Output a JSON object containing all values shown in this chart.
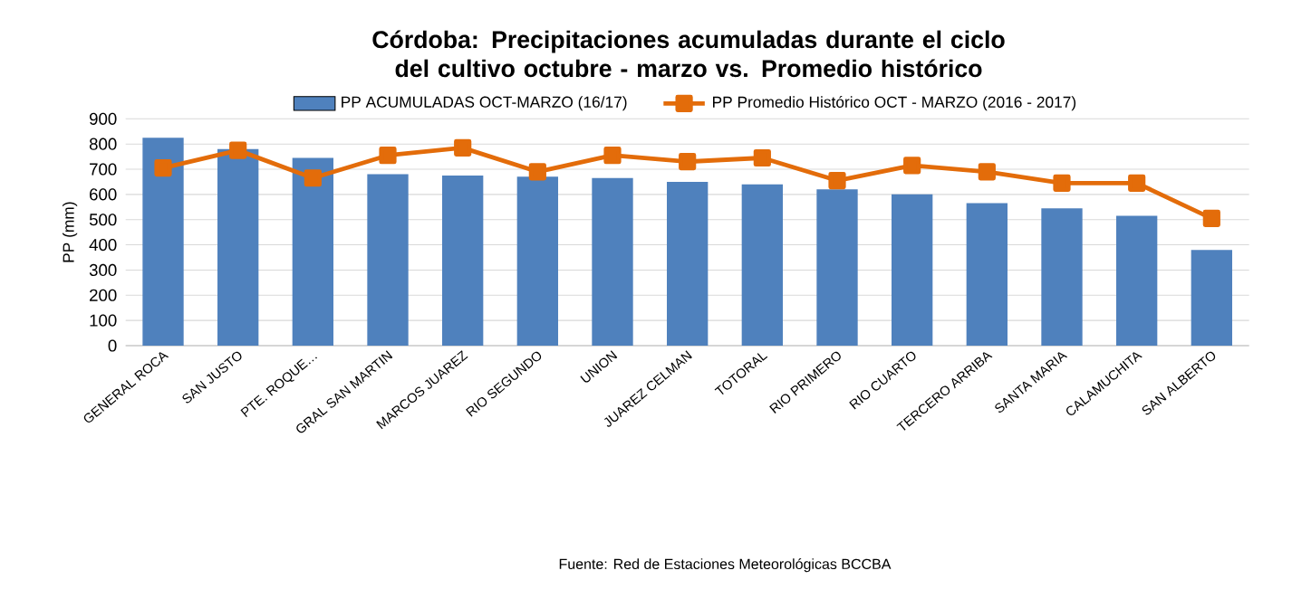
{
  "chart_data": {
    "type": "bar",
    "title": "Córdoba: Precipitaciones acumuladas durante el ciclo del cultivo octubre - marzo vs. Promedio histórico",
    "ylabel": "PP (mm)",
    "categories": [
      "GENERAL ROCA",
      "SAN JUSTO",
      "PTE. ROQUE…",
      "GRAL SAN MARTIN",
      "MARCOS JUAREZ",
      "RIO SEGUNDO",
      "UNION",
      "JUAREZ CELMAN",
      "TOTORAL",
      "RIO PRIMERO",
      "RIO CUARTO",
      "TERCERO ARRIBA",
      "SANTA MARIA",
      "CALAMUCHITA",
      "SAN ALBERTO"
    ],
    "series": [
      {
        "name": "PP ACUMULADAS OCT-MARZO (16/17)",
        "type": "bar",
        "color": "#4f81bd",
        "values": [
          825,
          780,
          745,
          680,
          675,
          670,
          665,
          650,
          640,
          620,
          600,
          565,
          545,
          515,
          380
        ]
      },
      {
        "name": "PP Promedio Histórico OCT - MARZO (2016 - 2017)",
        "type": "line",
        "color": "#e36c0a",
        "marker": "square",
        "values": [
          705,
          775,
          665,
          755,
          785,
          690,
          755,
          730,
          745,
          655,
          715,
          690,
          645,
          645,
          505
        ]
      }
    ],
    "ylim": [
      0,
      900
    ],
    "yticks": [
      0,
      100,
      200,
      300,
      400,
      500,
      600,
      700,
      800,
      900
    ],
    "grid": "y",
    "legend": "top",
    "annotations": [
      "Fuente: Red de Estaciones Meteorológicas BCCBA"
    ]
  }
}
